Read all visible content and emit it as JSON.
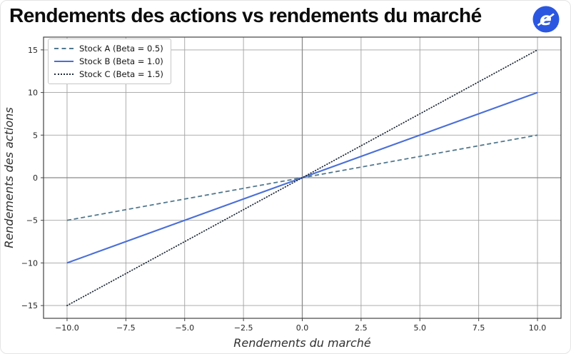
{
  "header": {
    "title": "Rendements des actions vs rendements du marché",
    "logo": {
      "glyph": "e",
      "bg_color": "#2b57e0",
      "glyph_color": "#ffffff"
    }
  },
  "chart_data": {
    "type": "line",
    "title": "Rendements des actions vs rendements du marché",
    "xlabel": "Rendements du marché",
    "ylabel": "Rendements des actions",
    "xlim": [
      -11,
      11
    ],
    "ylim": [
      -16.5,
      16.5
    ],
    "grid": true,
    "zero_lines": true,
    "legend_position": "upper-left",
    "xticks": {
      "values": [
        -10,
        -7.5,
        -5,
        -2.5,
        0,
        2.5,
        5,
        7.5,
        10
      ],
      "labels": [
        "−10.0",
        "−7.5",
        "−5.0",
        "−2.5",
        "0.0",
        "2.5",
        "5.0",
        "7.5",
        "10.0"
      ]
    },
    "yticks": {
      "values": [
        -15,
        -10,
        -5,
        0,
        5,
        10,
        15
      ],
      "labels": [
        "−15",
        "−10",
        "−5",
        "0",
        "5",
        "10",
        "15"
      ]
    },
    "series": [
      {
        "name": "Stock A (Beta = 0.5)",
        "beta": 0.5,
        "style": "dashed",
        "color": "#52788e",
        "x": [
          -10,
          10
        ],
        "y": [
          -5,
          5
        ]
      },
      {
        "name": "Stock B (Beta = 1.0)",
        "beta": 1.0,
        "style": "solid",
        "color": "#4a6fd6",
        "x": [
          -10,
          10
        ],
        "y": [
          -10,
          10
        ]
      },
      {
        "name": "Stock C (Beta = 1.5)",
        "beta": 1.5,
        "style": "dotted",
        "color": "#1f2a3a",
        "x": [
          -10,
          10
        ],
        "y": [
          -15,
          15
        ]
      }
    ],
    "colors": {
      "grid": "#a2a2a2",
      "zero_line": "#8a8a8a",
      "spine": "#424242",
      "tick_text": "#262626",
      "axis_label_text": "#303030"
    }
  }
}
